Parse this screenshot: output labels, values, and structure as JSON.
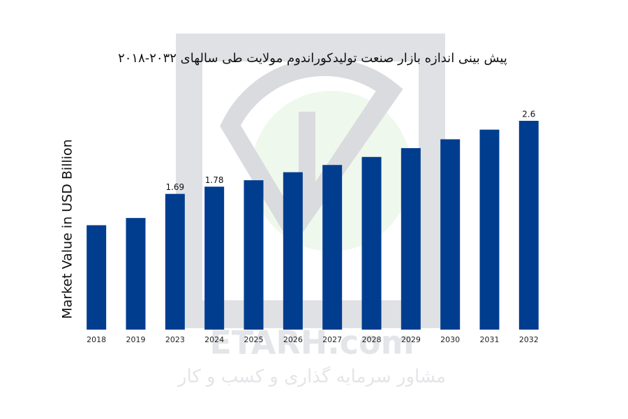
{
  "chart_data": {
    "type": "bar",
    "title": "پیش بینی اندازه بازار صنعت تولیدکوراندوم مولایت طی سالهای ۲۰۳۲-۲۰۱۸",
    "y_label": "Market Value in USD Billion",
    "categories": [
      "2018",
      "2019",
      "2023",
      "2024",
      "2025",
      "2026",
      "2027",
      "2028",
      "2029",
      "2030",
      "2031",
      "2032"
    ],
    "values": [
      1.3,
      1.39,
      1.69,
      1.78,
      1.86,
      1.96,
      2.05,
      2.15,
      2.26,
      2.37,
      2.49,
      2.6
    ],
    "value_labels": [
      null,
      null,
      "1.69",
      "1.78",
      null,
      null,
      null,
      null,
      null,
      null,
      null,
      "2.6"
    ],
    "color": "#003d8f",
    "ylim": [
      0,
      3
    ]
  },
  "watermark": {
    "text": "ETARH.com",
    "tagline": "مشاور سرمایه گذاری و کسب و کار"
  }
}
